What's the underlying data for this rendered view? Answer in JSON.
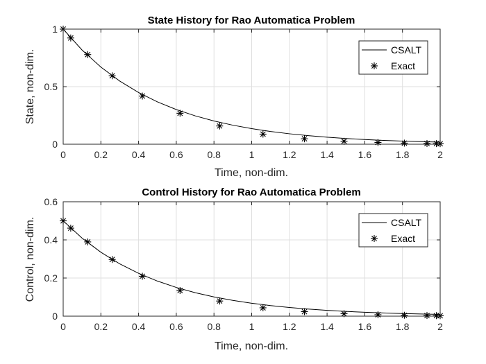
{
  "chart_data": [
    {
      "type": "line",
      "title": "State History for Rao Automatica Problem",
      "xlabel": "Time, non-dim.",
      "ylabel": "State, non-dim.",
      "xlim": [
        0,
        2
      ],
      "ylim": [
        0,
        1
      ],
      "xticks": [
        0,
        0.2,
        0.4,
        0.6,
        0.8,
        1,
        1.2,
        1.4,
        1.6,
        1.8,
        2
      ],
      "yticks": [
        0,
        0.5,
        1
      ],
      "xtick_labels": [
        "0",
        "0.2",
        "0.4",
        "0.6",
        "0.8",
        "1",
        "1.2",
        "1.4",
        "1.6",
        "1.8",
        "2"
      ],
      "ytick_labels": [
        "0",
        "0.5",
        "1"
      ],
      "grid": true,
      "legend_position": "top-right",
      "series": [
        {
          "name": "CSALT",
          "style": "line",
          "color": "#000000",
          "x": [
            0,
            0.1,
            0.2,
            0.3,
            0.4,
            0.5,
            0.6,
            0.7,
            0.8,
            0.9,
            1.0,
            1.1,
            1.2,
            1.3,
            1.4,
            1.5,
            1.6,
            1.7,
            1.8,
            1.9,
            2.0
          ],
          "y": [
            1.0,
            0.8187,
            0.6703,
            0.5488,
            0.4493,
            0.3679,
            0.3012,
            0.2466,
            0.2019,
            0.1653,
            0.1353,
            0.1108,
            0.0907,
            0.0743,
            0.0608,
            0.0498,
            0.0408,
            0.0334,
            0.0273,
            0.0224,
            0.0183
          ]
        },
        {
          "name": "Exact",
          "style": "marker",
          "marker": "asterisk",
          "color": "#000000",
          "x": [
            0,
            0.04,
            0.13,
            0.26,
            0.42,
            0.62,
            0.83,
            1.06,
            1.28,
            1.49,
            1.67,
            1.81,
            1.93,
            1.98,
            2.0
          ],
          "y": [
            1.0,
            0.9231,
            0.7788,
            0.5945,
            0.4185,
            0.2689,
            0.1585,
            0.0875,
            0.0472,
            0.0254,
            0.0147,
            0.0093,
            0.0063,
            0.0052,
            0.0048
          ]
        }
      ]
    },
    {
      "type": "line",
      "title": "Control History for Rao Automatica Problem",
      "xlabel": "Time, non-dim.",
      "ylabel": "Control, non-dim.",
      "xlim": [
        0,
        2
      ],
      "ylim": [
        0,
        0.6
      ],
      "xticks": [
        0,
        0.2,
        0.4,
        0.6,
        0.8,
        1,
        1.2,
        1.4,
        1.6,
        1.8,
        2
      ],
      "yticks": [
        0,
        0.2,
        0.4,
        0.6
      ],
      "xtick_labels": [
        "0",
        "0.2",
        "0.4",
        "0.6",
        "0.8",
        "1",
        "1.2",
        "1.4",
        "1.6",
        "1.8",
        "2"
      ],
      "ytick_labels": [
        "0",
        "0.2",
        "0.4",
        "0.6"
      ],
      "grid": true,
      "legend_position": "top-right",
      "series": [
        {
          "name": "CSALT",
          "style": "line",
          "color": "#000000",
          "x": [
            0,
            0.1,
            0.2,
            0.3,
            0.4,
            0.5,
            0.6,
            0.7,
            0.8,
            0.9,
            1.0,
            1.1,
            1.2,
            1.3,
            1.4,
            1.5,
            1.6,
            1.7,
            1.8,
            1.9,
            2.0
          ],
          "y": [
            0.5,
            0.4094,
            0.3352,
            0.2744,
            0.2247,
            0.184,
            0.1506,
            0.1233,
            0.1009,
            0.0826,
            0.0677,
            0.0554,
            0.0454,
            0.0371,
            0.0304,
            0.0249,
            0.0204,
            0.0167,
            0.0137,
            0.0112,
            0.0092
          ]
        },
        {
          "name": "Exact",
          "style": "marker",
          "marker": "asterisk",
          "color": "#000000",
          "x": [
            0,
            0.04,
            0.13,
            0.26,
            0.42,
            0.62,
            0.83,
            1.06,
            1.28,
            1.49,
            1.67,
            1.81,
            1.93,
            1.98,
            2.0
          ],
          "y": [
            0.5,
            0.4616,
            0.3894,
            0.2973,
            0.2093,
            0.1345,
            0.0793,
            0.0438,
            0.0236,
            0.0127,
            0.0074,
            0.0047,
            0.0032,
            0.0026,
            0.0024
          ]
        }
      ]
    }
  ]
}
